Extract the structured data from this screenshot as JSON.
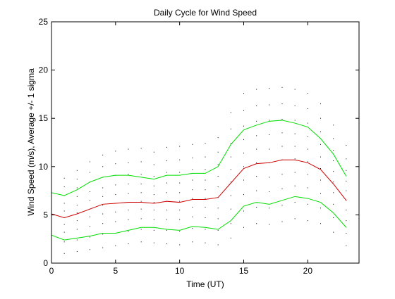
{
  "chart_data": {
    "type": "line",
    "title": "Daily Cycle for Wind Speed",
    "xlabel": "Time (UT)",
    "ylabel": "Wind Speed (m/s), Average +/- 1 sigma",
    "xlim": [
      0,
      24
    ],
    "ylim": [
      0,
      25
    ],
    "x_ticks": [
      0,
      5,
      10,
      15,
      20
    ],
    "y_ticks": [
      0,
      5,
      10,
      15,
      20,
      25
    ],
    "x_tick_labels": [
      "0",
      "5",
      "10",
      "15",
      "20"
    ],
    "y_tick_labels": [
      "0",
      "5",
      "10",
      "15",
      "20",
      "25"
    ],
    "grid": false,
    "legend": "none",
    "x": [
      0,
      1,
      2,
      3,
      4,
      5,
      6,
      7,
      8,
      9,
      10,
      11,
      12,
      13,
      14,
      15,
      16,
      17,
      18,
      19,
      20,
      21,
      22,
      23
    ],
    "series": [
      {
        "role": "average",
        "color": "#cc0000",
        "values": [
          5.1,
          4.7,
          5.1,
          5.6,
          6.1,
          6.2,
          6.3,
          6.3,
          6.2,
          6.4,
          6.3,
          6.6,
          6.6,
          6.8,
          8.3,
          9.8,
          10.3,
          10.4,
          10.7,
          10.7,
          10.4,
          9.7,
          8.2,
          6.5
        ]
      },
      {
        "role": "average+1sigma",
        "color": "#00dd00",
        "values": [
          7.3,
          7.0,
          7.6,
          8.4,
          8.9,
          9.1,
          9.1,
          8.9,
          8.7,
          9.1,
          9.1,
          9.3,
          9.3,
          10.0,
          12.3,
          13.8,
          14.3,
          14.7,
          14.8,
          14.5,
          14.1,
          12.9,
          11.3,
          9.0
        ]
      },
      {
        "role": "average-1sigma",
        "color": "#00dd00",
        "values": [
          2.9,
          2.4,
          2.6,
          2.8,
          3.1,
          3.1,
          3.4,
          3.7,
          3.7,
          3.5,
          3.4,
          3.8,
          3.7,
          3.5,
          4.4,
          5.9,
          6.3,
          6.1,
          6.5,
          6.9,
          6.7,
          6.3,
          5.2,
          3.7
        ]
      }
    ],
    "scatter": {
      "color": "#000000",
      "x": [
        0,
        0,
        0,
        0,
        0,
        0,
        0,
        0,
        0,
        0,
        1,
        1,
        1,
        1,
        1,
        1,
        1,
        1,
        1,
        1,
        2,
        2,
        2,
        2,
        2,
        2,
        2,
        2,
        2,
        2,
        3,
        3,
        3,
        3,
        3,
        3,
        3,
        3,
        3,
        3,
        4,
        4,
        4,
        4,
        4,
        4,
        4,
        4,
        4,
        4,
        5,
        5,
        5,
        5,
        5,
        5,
        5,
        5,
        5,
        5,
        6,
        6,
        6,
        6,
        6,
        6,
        6,
        6,
        6,
        6,
        7,
        7,
        7,
        7,
        7,
        7,
        7,
        7,
        7,
        7,
        8,
        8,
        8,
        8,
        8,
        8,
        8,
        8,
        8,
        8,
        9,
        9,
        9,
        9,
        9,
        9,
        9,
        9,
        9,
        9,
        10,
        10,
        10,
        10,
        10,
        10,
        10,
        10,
        10,
        10,
        11,
        11,
        11,
        11,
        11,
        11,
        11,
        11,
        11,
        11,
        12,
        12,
        12,
        12,
        12,
        12,
        12,
        12,
        12,
        12,
        13,
        13,
        13,
        13,
        13,
        13,
        13,
        13,
        13,
        13,
        14,
        14,
        14,
        14,
        14,
        14,
        14,
        14,
        14,
        14,
        15,
        15,
        15,
        15,
        15,
        15,
        15,
        15,
        15,
        15,
        16,
        16,
        16,
        16,
        16,
        16,
        16,
        16,
        16,
        16,
        17,
        17,
        17,
        17,
        17,
        17,
        17,
        17,
        17,
        17,
        18,
        18,
        18,
        18,
        18,
        18,
        18,
        18,
        18,
        18,
        19,
        19,
        19,
        19,
        19,
        19,
        19,
        19,
        19,
        19,
        20,
        20,
        20,
        20,
        20,
        20,
        20,
        20,
        20,
        20,
        21,
        21,
        21,
        21,
        21,
        21,
        21,
        21,
        21,
        21,
        22,
        22,
        22,
        22,
        22,
        22,
        22,
        22,
        22,
        22,
        23,
        23,
        23,
        23,
        23,
        23,
        23,
        23,
        23,
        23
      ],
      "y": [
        1.5,
        2.8,
        3.6,
        4.3,
        5.0,
        5.6,
        6.3,
        7.0,
        7.8,
        8.6,
        1.0,
        2.2,
        3.2,
        4.0,
        4.7,
        5.4,
        6.2,
        7.0,
        7.9,
        8.8,
        1.2,
        2.4,
        3.5,
        4.4,
        5.2,
        6.0,
        6.9,
        7.8,
        8.7,
        9.6,
        1.4,
        2.7,
        3.8,
        4.8,
        5.6,
        6.5,
        7.4,
        8.4,
        9.4,
        10.5,
        1.6,
        3.0,
        4.1,
        5.1,
        6.0,
        6.9,
        7.8,
        8.9,
        10.0,
        11.2,
        1.8,
        3.1,
        4.3,
        5.3,
        6.2,
        7.1,
        8.1,
        9.1,
        10.3,
        11.6,
        2.0,
        3.3,
        4.5,
        5.5,
        6.3,
        7.2,
        8.2,
        9.2,
        10.4,
        11.8,
        2.2,
        3.5,
        4.6,
        5.6,
        6.4,
        7.3,
        8.2,
        9.2,
        10.5,
        11.9,
        2.1,
        3.4,
        4.5,
        5.5,
        6.3,
        7.1,
        8.0,
        9.0,
        10.2,
        11.5,
        2.0,
        3.4,
        4.5,
        5.5,
        6.4,
        7.3,
        8.3,
        9.4,
        10.6,
        12.0,
        1.9,
        3.3,
        4.5,
        5.5,
        6.4,
        7.3,
        8.3,
        9.4,
        10.7,
        12.1,
        2.2,
        3.6,
        4.8,
        5.8,
        6.7,
        7.6,
        8.6,
        9.7,
        10.9,
        12.3,
        2.1,
        3.5,
        4.7,
        5.8,
        6.7,
        7.6,
        8.6,
        9.7,
        11.0,
        12.4,
        1.9,
        3.4,
        4.6,
        5.7,
        6.8,
        7.9,
        9.0,
        10.2,
        11.5,
        13.0,
        2.6,
        4.1,
        5.6,
        7.0,
        8.4,
        9.7,
        11.0,
        12.4,
        13.9,
        15.6,
        3.7,
        5.4,
        7.1,
        8.6,
        10.0,
        11.4,
        12.8,
        14.2,
        15.8,
        17.6,
        4.1,
        5.8,
        7.5,
        9.0,
        10.4,
        11.8,
        13.2,
        14.7,
        16.3,
        18.0,
        4.0,
        5.7,
        7.4,
        8.9,
        10.4,
        11.8,
        13.3,
        14.8,
        16.4,
        18.1,
        4.3,
        6.0,
        7.7,
        9.2,
        10.7,
        12.1,
        13.5,
        14.9,
        16.5,
        18.2,
        4.6,
        6.3,
        8.0,
        9.4,
        10.8,
        12.1,
        13.4,
        14.8,
        16.3,
        18.0,
        4.4,
        6.1,
        7.8,
        9.2,
        10.5,
        11.8,
        13.1,
        14.5,
        16.0,
        17.6,
        4.1,
        5.7,
        7.2,
        8.6,
        9.8,
        11.0,
        12.3,
        13.6,
        15.0,
        16.5,
        3.2,
        4.7,
        6.1,
        7.3,
        8.4,
        9.5,
        10.6,
        11.7,
        12.9,
        14.3,
        1.8,
        3.1,
        4.4,
        5.5,
        6.5,
        7.5,
        8.5,
        9.6,
        10.8,
        12.2
      ]
    }
  }
}
